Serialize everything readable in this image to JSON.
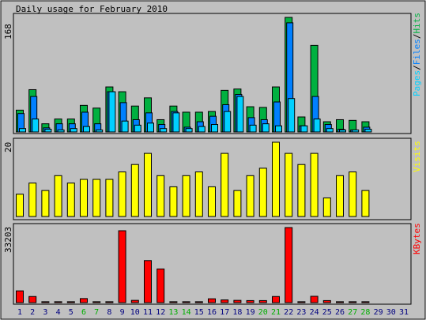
{
  "title": "Daily usage for February 2010",
  "colors": {
    "hits": "#00b040",
    "files": "#0080ff",
    "pages": "#00d0ff",
    "visits": "#ffff00",
    "kbytes": "#ff0000",
    "weekend": "#00b000",
    "weekday": "#000080"
  },
  "chart_data": [
    {
      "type": "bar",
      "panel": "hits",
      "categories": [
        "1",
        "2",
        "3",
        "4",
        "5",
        "6",
        "7",
        "8",
        "9",
        "10",
        "11",
        "12",
        "13",
        "14",
        "15",
        "16",
        "17",
        "18",
        "19",
        "20",
        "21",
        "22",
        "23",
        "24",
        "25",
        "26",
        "27",
        "28",
        "29",
        "30",
        "31"
      ],
      "y_max_label": "168",
      "legend": [
        "Pages",
        "/",
        "Files",
        "/",
        "Hits"
      ],
      "series": [
        {
          "name": "Hits",
          "values": [
            32,
            62,
            12,
            19,
            19,
            39,
            35,
            66,
            59,
            38,
            50,
            18,
            38,
            29,
            29,
            30,
            61,
            63,
            37,
            36,
            66,
            168,
            22,
            127,
            15,
            18,
            17,
            15,
            0,
            0,
            0
          ]
        },
        {
          "name": "Files",
          "values": [
            27,
            52,
            6,
            12,
            12,
            29,
            12,
            59,
            43,
            18,
            28,
            11,
            30,
            7,
            15,
            23,
            40,
            55,
            21,
            18,
            44,
            160,
            9,
            52,
            11,
            4,
            3,
            7,
            0,
            0,
            0
          ]
        },
        {
          "name": "Pages",
          "values": [
            5,
            19,
            4,
            3,
            5,
            8,
            3,
            59,
            16,
            10,
            13,
            5,
            28,
            5,
            8,
            11,
            30,
            52,
            10,
            12,
            9,
            49,
            9,
            19,
            5,
            3,
            3,
            4,
            0,
            0,
            0
          ]
        }
      ]
    },
    {
      "type": "bar",
      "panel": "visits",
      "categories": [
        "1",
        "2",
        "3",
        "4",
        "5",
        "6",
        "7",
        "8",
        "9",
        "10",
        "11",
        "12",
        "13",
        "14",
        "15",
        "16",
        "17",
        "18",
        "19",
        "20",
        "21",
        "22",
        "23",
        "24",
        "25",
        "26",
        "27",
        "28",
        "29",
        "30",
        "31"
      ],
      "y_max_label": "20",
      "legend": [
        "Visits"
      ],
      "series": [
        {
          "name": "Visits",
          "values": [
            6,
            9,
            7,
            11,
            9,
            10,
            10,
            10,
            12,
            14,
            17,
            11,
            8,
            11,
            12,
            8,
            17,
            7,
            11,
            13,
            20,
            17,
            14,
            17,
            5,
            11,
            12,
            7,
            0,
            0,
            0
          ]
        }
      ]
    },
    {
      "type": "bar",
      "panel": "kbytes",
      "categories": [
        "1",
        "2",
        "3",
        "4",
        "5",
        "6",
        "7",
        "8",
        "9",
        "10",
        "11",
        "12",
        "13",
        "14",
        "15",
        "16",
        "17",
        "18",
        "19",
        "20",
        "21",
        "22",
        "23",
        "24",
        "25",
        "26",
        "27",
        "28",
        "29",
        "30",
        "31"
      ],
      "y_max_label": "33203",
      "legend": [
        "KBytes"
      ],
      "series": [
        {
          "name": "KBytes",
          "values": [
            5200,
            2700,
            400,
            400,
            400,
            1800,
            400,
            400,
            31800,
            1000,
            18600,
            14900,
            400,
            400,
            400,
            1700,
            1200,
            1000,
            900,
            900,
            2700,
            33203,
            400,
            2800,
            900,
            400,
            400,
            400,
            0,
            0,
            0
          ]
        }
      ]
    }
  ],
  "weekend_days": [
    "6",
    "7",
    "13",
    "14",
    "20",
    "21",
    "27",
    "28"
  ]
}
